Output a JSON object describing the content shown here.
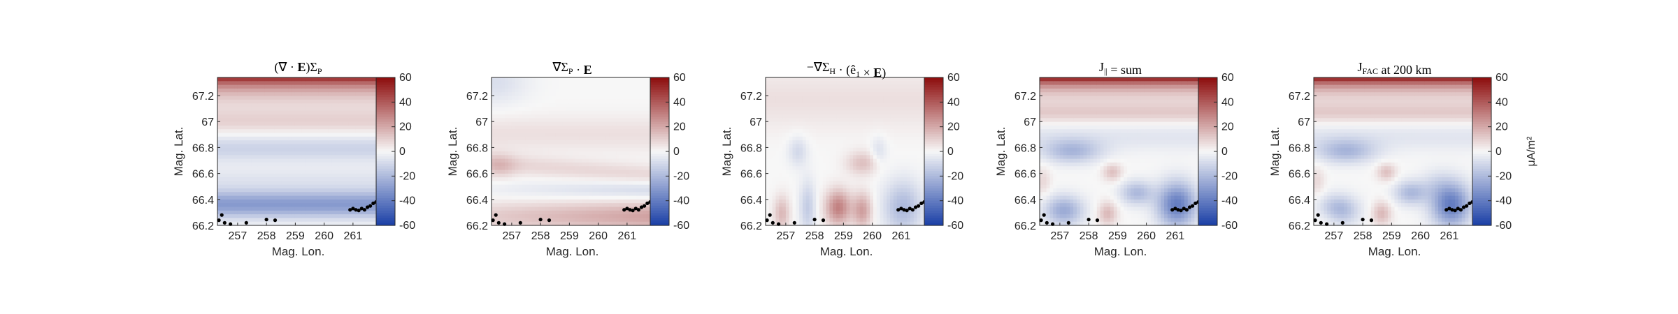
{
  "chart_data": [
    {
      "type": "heatmap",
      "title": "(∇·E)Σ_P",
      "title_parts": [
        {
          "t": "(∇ · ",
          "s": "n"
        },
        {
          "t": "E",
          "s": "b"
        },
        {
          "t": ")Σ",
          "s": "n"
        },
        {
          "t": "P",
          "s": "sub"
        }
      ],
      "xlabel": "Mag. Lon.",
      "ylabel": "Mag. Lat.",
      "xlim": [
        256.3,
        261.9
      ],
      "ylim": [
        66.2,
        67.34
      ],
      "xticks": [
        257,
        258,
        259,
        260,
        261
      ],
      "yticks": [
        66.2,
        66.4,
        66.6,
        66.8,
        67,
        67.2
      ],
      "colorbar": {
        "ticks": [
          60,
          40,
          20,
          0,
          -20,
          -40,
          -60
        ],
        "range": [
          -60,
          60
        ],
        "label": ""
      },
      "field": "divE"
    },
    {
      "type": "heatmap",
      "title": "∇Σ_P·E",
      "title_parts": [
        {
          "t": "∇Σ",
          "s": "n"
        },
        {
          "t": "P",
          "s": "sub"
        },
        {
          "t": " · ",
          "s": "n"
        },
        {
          "t": "E",
          "s": "b"
        }
      ],
      "xlabel": "Mag. Lon.",
      "ylabel": "Mag. Lat.",
      "xlim": [
        256.3,
        261.9
      ],
      "ylim": [
        66.2,
        67.34
      ],
      "xticks": [
        257,
        258,
        259,
        260,
        261
      ],
      "yticks": [
        66.2,
        66.4,
        66.6,
        66.8,
        67,
        67.2
      ],
      "colorbar": {
        "ticks": [
          60,
          40,
          20,
          0,
          -20,
          -40,
          -60
        ],
        "range": [
          -60,
          60
        ],
        "label": ""
      },
      "field": "gradP"
    },
    {
      "type": "heatmap",
      "title": "−∇Σ_H·(ê_1×E)",
      "title_parts": [
        {
          "t": "−∇Σ",
          "s": "n"
        },
        {
          "t": "H",
          "s": "sub"
        },
        {
          "t": " · (ê",
          "s": "n"
        },
        {
          "t": "1",
          "s": "sub"
        },
        {
          "t": " × ",
          "s": "n"
        },
        {
          "t": "E",
          "s": "b"
        },
        {
          "t": ")",
          "s": "n"
        }
      ],
      "xlabel": "Mag. Lon.",
      "ylabel": "Mag. Lat.",
      "xlim": [
        256.3,
        261.9
      ],
      "ylim": [
        66.2,
        67.34
      ],
      "xticks": [
        257,
        258,
        259,
        260,
        261
      ],
      "yticks": [
        66.2,
        66.4,
        66.6,
        66.8,
        67,
        67.2
      ],
      "colorbar": {
        "ticks": [
          60,
          40,
          20,
          0,
          -20,
          -40,
          -60
        ],
        "range": [
          -60,
          60
        ],
        "label": ""
      },
      "field": "gradH"
    },
    {
      "type": "heatmap",
      "title": "J_|| = sum",
      "title_parts": [
        {
          "t": "J",
          "s": "n"
        },
        {
          "t": "||",
          "s": "sub"
        },
        {
          "t": " = sum",
          "s": "n"
        }
      ],
      "xlabel": "Mag. Lon.",
      "ylabel": "Mag. Lat.",
      "xlim": [
        256.3,
        261.9
      ],
      "ylim": [
        66.2,
        67.34
      ],
      "xticks": [
        257,
        258,
        259,
        260,
        261
      ],
      "yticks": [
        66.2,
        66.4,
        66.6,
        66.8,
        67,
        67.2
      ],
      "colorbar": {
        "ticks": [
          60,
          40,
          20,
          0,
          -20,
          -40,
          -60
        ],
        "range": [
          -60,
          60
        ],
        "label": ""
      },
      "field": "sum"
    },
    {
      "type": "heatmap",
      "title": "J_FAC at 200 km",
      "title_parts": [
        {
          "t": "J",
          "s": "n"
        },
        {
          "t": "FAC",
          "s": "sub"
        },
        {
          "t": " at 200 km",
          "s": "n"
        }
      ],
      "xlabel": "Mag. Lon.",
      "ylabel": "Mag. Lat.",
      "xlim": [
        256.3,
        261.9
      ],
      "ylim": [
        66.2,
        67.34
      ],
      "xticks": [
        257,
        258,
        259,
        260,
        261
      ],
      "yticks": [
        66.2,
        66.4,
        66.6,
        66.8,
        67,
        67.2
      ],
      "colorbar": {
        "ticks": [
          60,
          40,
          20,
          0,
          -20,
          -40,
          -60
        ],
        "range": [
          -60,
          60
        ],
        "label": "μA/m²"
      },
      "field": "fac"
    }
  ],
  "markers": {
    "color": "#000000",
    "points": [
      [
        256.35,
        66.24
      ],
      [
        256.45,
        66.28
      ],
      [
        256.55,
        66.22
      ],
      [
        256.75,
        66.21
      ],
      [
        257.3,
        66.22
      ],
      [
        258.0,
        66.245
      ],
      [
        258.3,
        66.24
      ],
      [
        260.9,
        66.32
      ],
      [
        261.0,
        66.33
      ],
      [
        261.1,
        66.32
      ],
      [
        261.2,
        66.315
      ],
      [
        261.3,
        66.33
      ],
      [
        261.4,
        66.32
      ],
      [
        261.5,
        66.34
      ],
      [
        261.6,
        66.35
      ],
      [
        261.7,
        66.37
      ],
      [
        261.8,
        66.38
      ],
      [
        261.88,
        66.39
      ]
    ]
  },
  "colormap": {
    "negative": "#1a3fa6",
    "zero": "#f7f7f7",
    "positive": "#8c0b0b"
  }
}
